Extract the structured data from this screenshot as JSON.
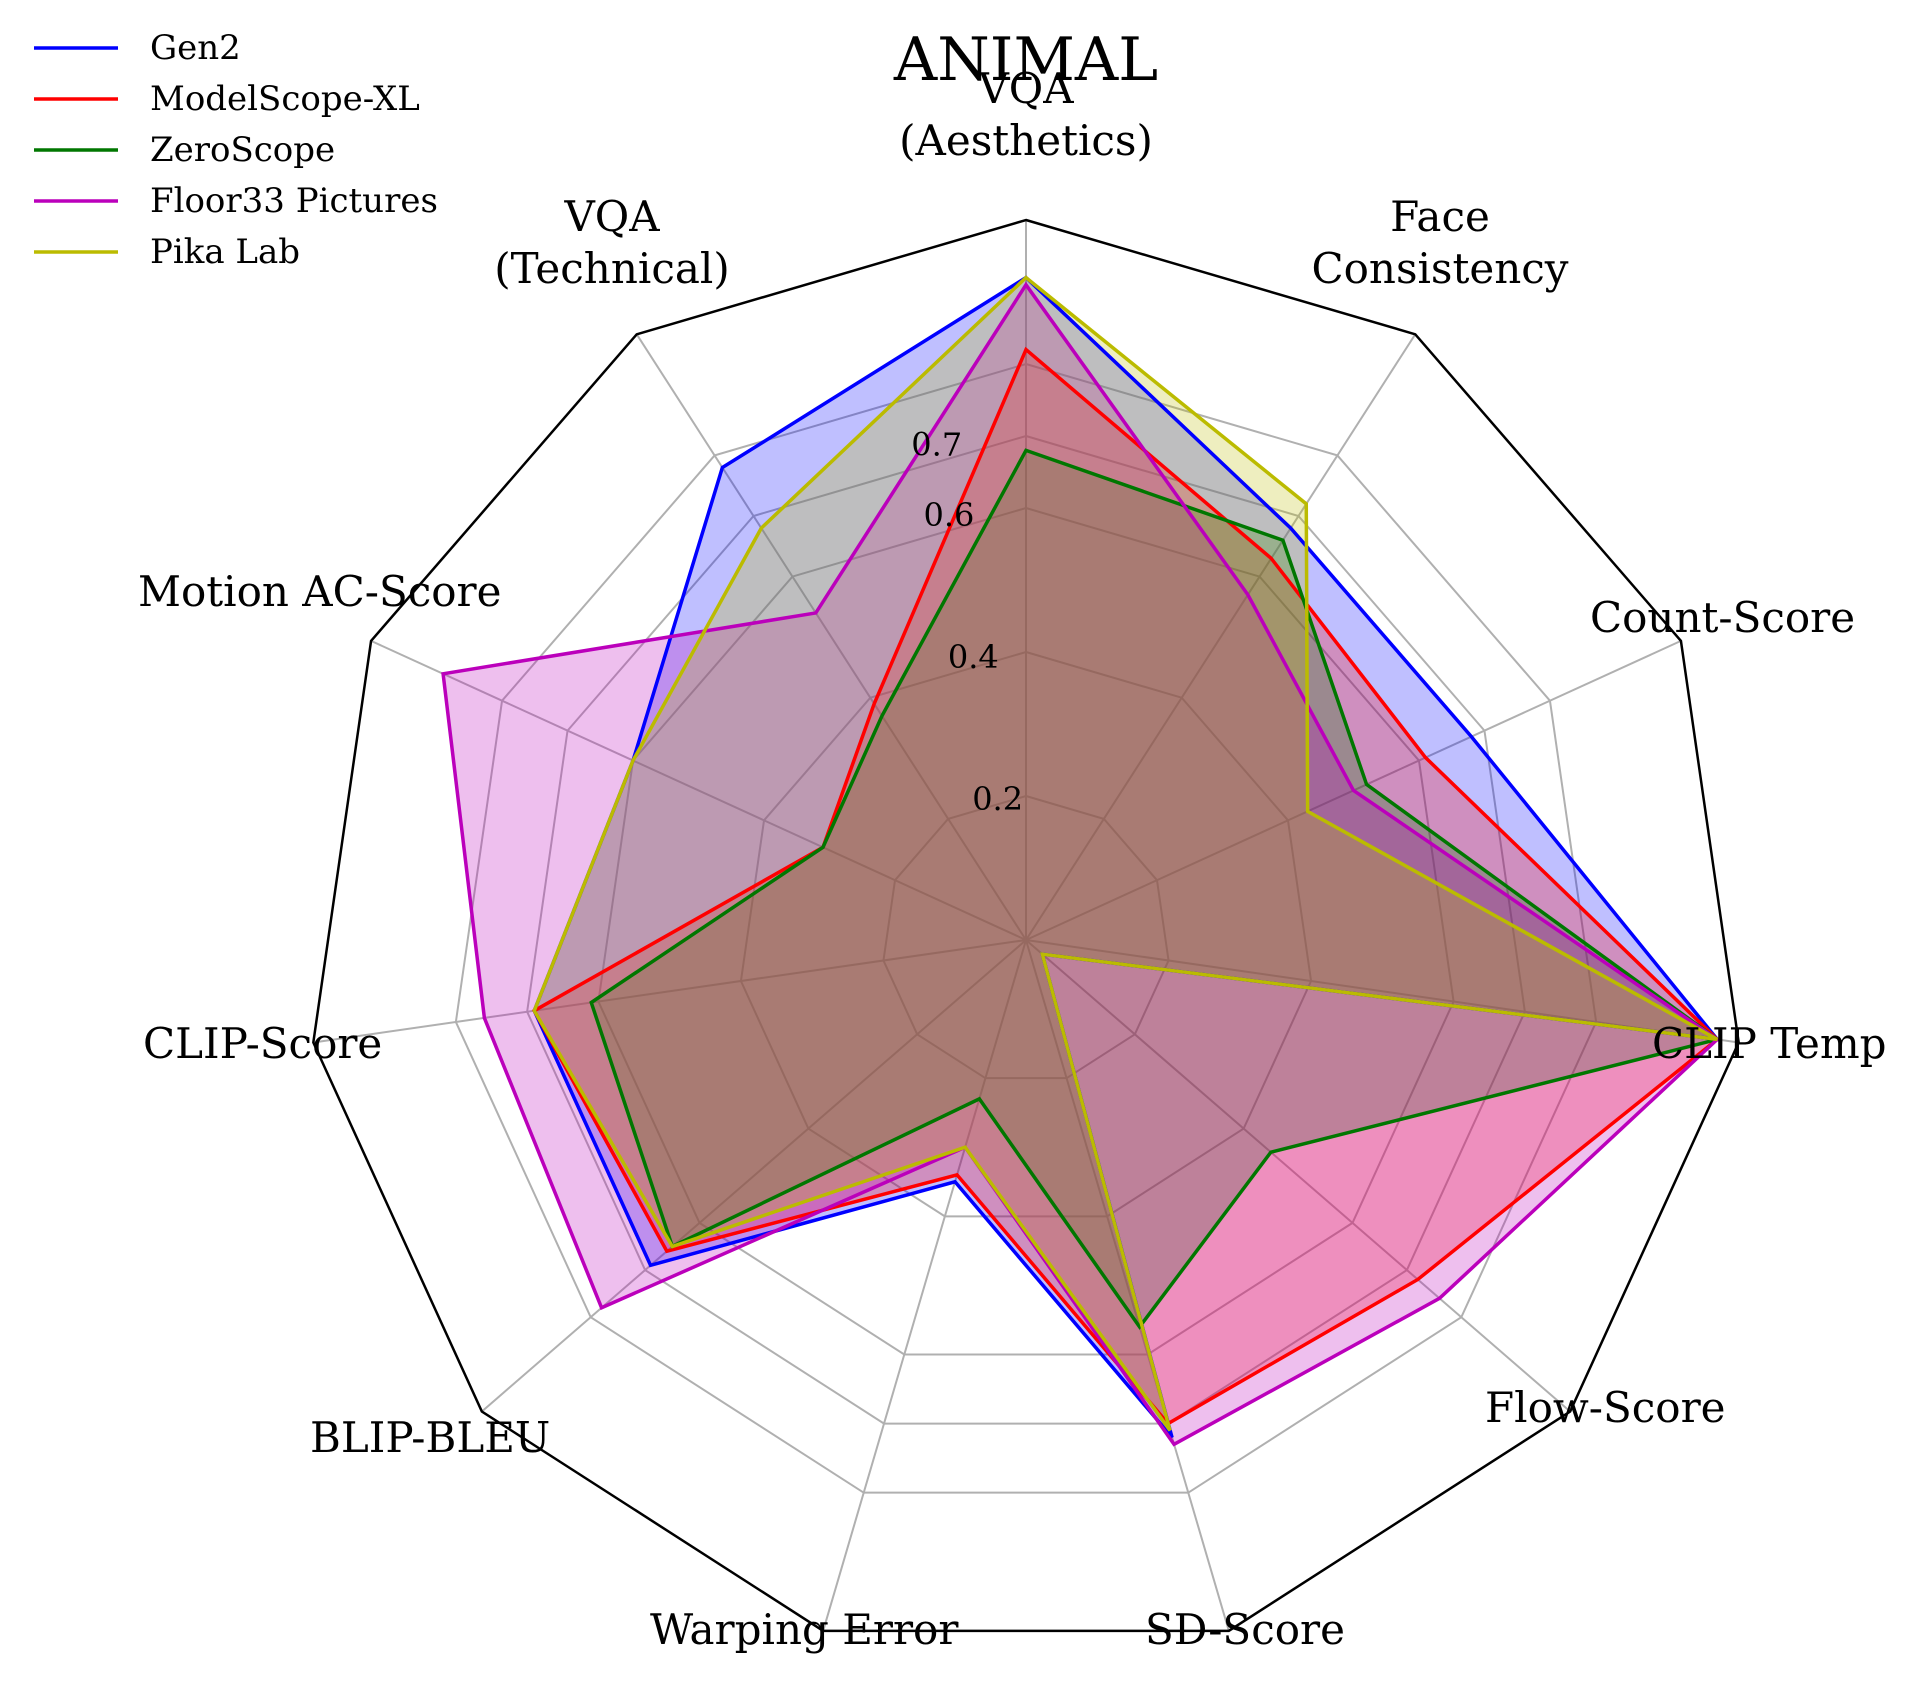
{
  "chart_data": {
    "type": "radar",
    "title": "ANIMAL",
    "axes": [
      "VQA\n(Aesthetics)",
      "Face\nConsistency",
      "Count-Score",
      "CLIP Temp",
      "Flow-Score",
      "SD-Score",
      "Warping Error",
      "BLIP-BLEU",
      "CLIP-Score",
      "Motion AC-Score",
      "VQA\n(Technical)"
    ],
    "radial_ticks": [
      "0.2",
      "0.4",
      "0.6",
      "0.7"
    ],
    "radial_tick_values": [
      0.2,
      0.4,
      0.6,
      0.7
    ],
    "grid_levels": [
      0.2,
      0.4,
      0.6,
      0.7,
      0.8
    ],
    "rmax": 1.0,
    "grid": true,
    "legend_position": "top-left",
    "series": [
      {
        "name": "Gen2",
        "color": "#0000ff",
        "fill_opacity": 0.25,
        "values": [
          0.92,
          0.68,
          0.68,
          0.97,
          0.03,
          0.72,
          0.35,
          0.69,
          0.69,
          0.6,
          0.78
        ]
      },
      {
        "name": "ModelScope-XL",
        "color": "#ff0000",
        "fill_opacity": 0.25,
        "values": [
          0.82,
          0.63,
          0.61,
          0.97,
          0.72,
          0.7,
          0.34,
          0.66,
          0.69,
          0.31,
          0.39
        ]
      },
      {
        "name": "ZeroScope",
        "color": "#007700",
        "fill_opacity": 0.25,
        "values": [
          0.68,
          0.66,
          0.52,
          0.97,
          0.45,
          0.56,
          0.23,
          0.65,
          0.61,
          0.31,
          0.37
        ]
      },
      {
        "name": "Floor33 Pictures",
        "color": "#bb00bb",
        "fill_opacity": 0.25,
        "values": [
          0.91,
          0.57,
          0.5,
          0.97,
          0.76,
          0.73,
          0.3,
          0.78,
          0.76,
          0.89,
          0.54
        ]
      },
      {
        "name": "Pika Lab",
        "color": "#bbbb00",
        "fill_opacity": 0.25,
        "values": [
          0.92,
          0.72,
          0.43,
          0.97,
          0.03,
          0.71,
          0.3,
          0.65,
          0.69,
          0.6,
          0.68
        ]
      }
    ]
  }
}
